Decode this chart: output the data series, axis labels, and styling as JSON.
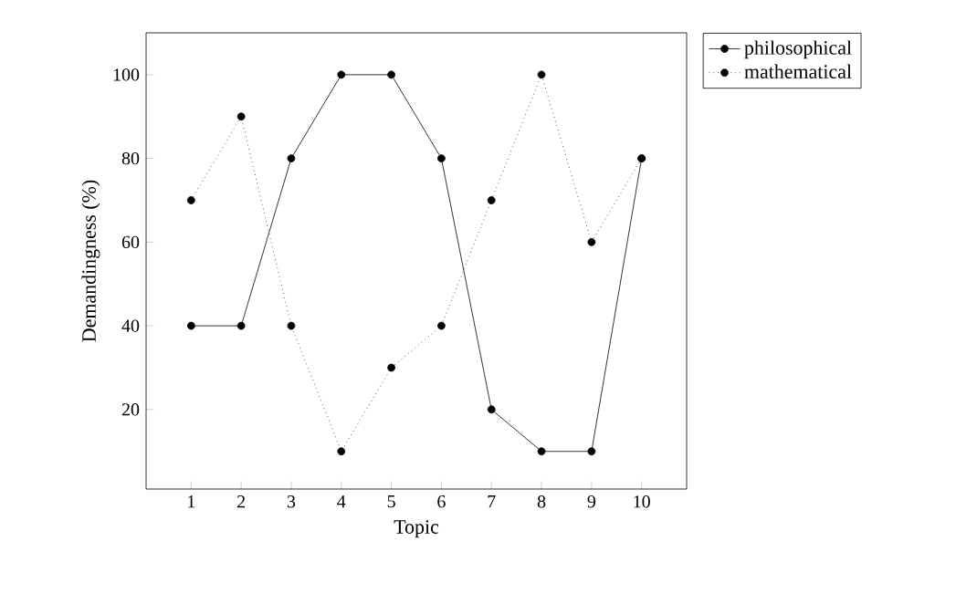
{
  "chart_data": {
    "type": "line",
    "xlabel": "Topic",
    "ylabel": "Demandingness (%)",
    "x": [
      1,
      2,
      3,
      4,
      5,
      6,
      7,
      8,
      9,
      10
    ],
    "xlim": [
      0.1,
      10.9
    ],
    "ylim": [
      1,
      110
    ],
    "xticks": [
      1,
      2,
      3,
      4,
      5,
      6,
      7,
      8,
      9,
      10
    ],
    "yticks": [
      20,
      40,
      60,
      80,
      100
    ],
    "marker": "circle",
    "legend": "top right",
    "grid": false,
    "series": [
      {
        "name": "philosophical",
        "color": "#000000",
        "line_style": "solid",
        "values": [
          40,
          40,
          80,
          100,
          100,
          80,
          20,
          10,
          10,
          80
        ]
      },
      {
        "name": "mathematical",
        "color": "#000000",
        "line_style": "dotted",
        "values": [
          70,
          90,
          40,
          10,
          30,
          40,
          70,
          100,
          60,
          80
        ]
      }
    ]
  }
}
